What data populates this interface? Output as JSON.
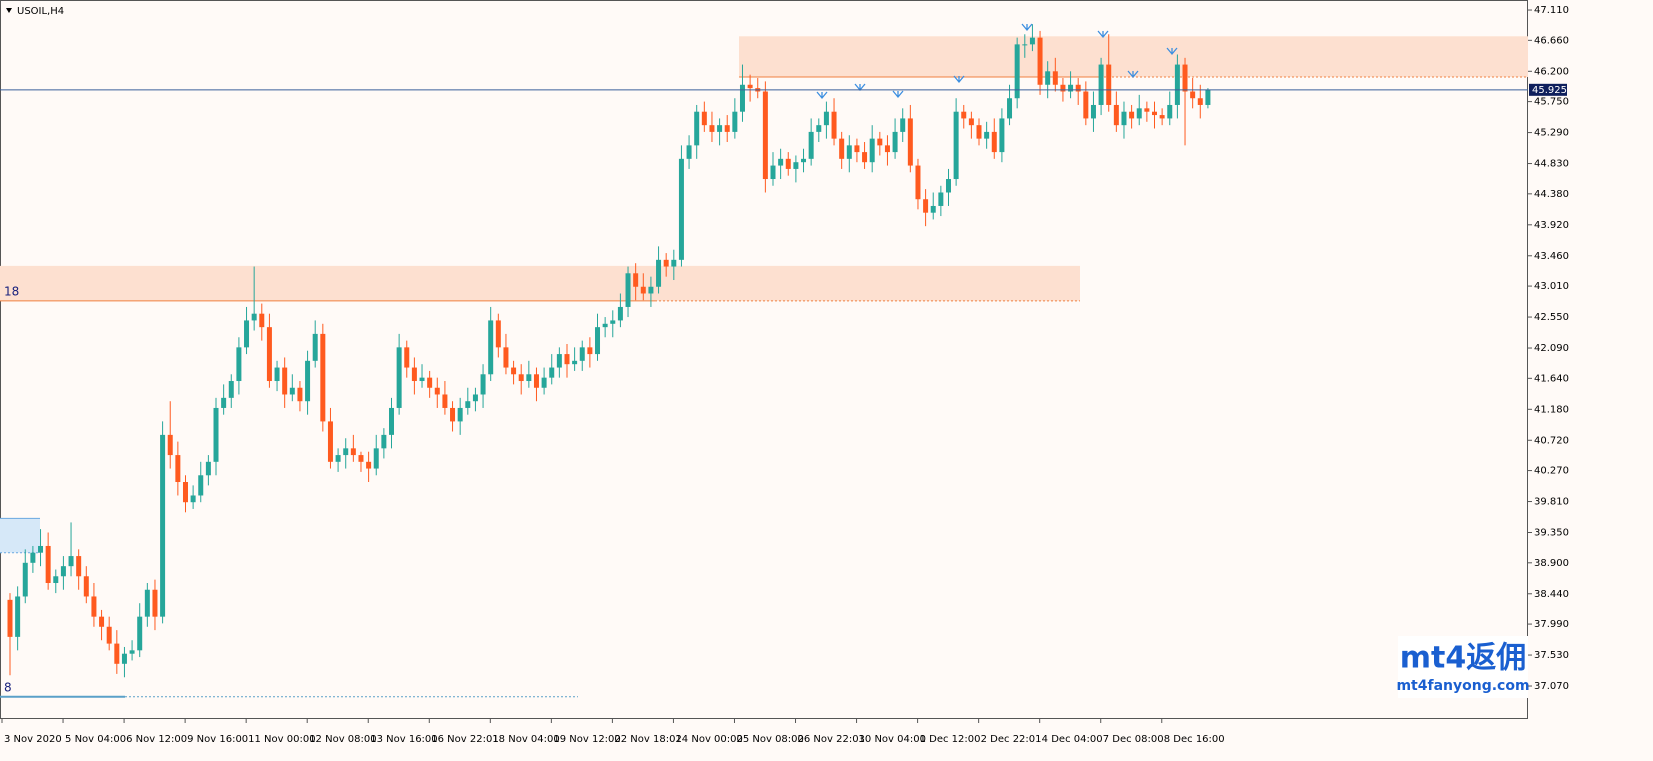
{
  "chart_data": {
    "type": "candlestick",
    "title": "USOIL,H4",
    "colors": {
      "up": "#26a69a",
      "down": "#ff5a1f"
    },
    "open": [
      38.35,
      37.8,
      38.4,
      38.9,
      39.05,
      39.15,
      38.6,
      38.7,
      38.85,
      39.0,
      38.7,
      38.4,
      38.1,
      37.95,
      37.7,
      37.4,
      37.55,
      37.6,
      38.1,
      38.5,
      38.1,
      40.8,
      40.5,
      40.1,
      39.8,
      39.9,
      40.2,
      40.4,
      41.2,
      41.35,
      41.6,
      42.1,
      42.5,
      42.6,
      42.4,
      41.6,
      41.8,
      41.4,
      41.5,
      41.3,
      41.9,
      42.3,
      41.0,
      40.4,
      40.5,
      40.6,
      40.5,
      40.4,
      40.3,
      40.6,
      40.8,
      41.2,
      42.1,
      41.8,
      41.6,
      41.65,
      41.5,
      41.4,
      41.2,
      41.0,
      41.2,
      41.3,
      41.4,
      41.7,
      42.5,
      42.1,
      41.8,
      41.7,
      41.6,
      41.7,
      41.5,
      41.65,
      41.8,
      42.0,
      41.85,
      41.9,
      42.1,
      42.0,
      42.4,
      42.45,
      42.5,
      42.7,
      43.2,
      43.0,
      42.9,
      43.0,
      43.4,
      43.3,
      43.4,
      44.9,
      45.1,
      45.6,
      45.4,
      45.3,
      45.4,
      45.3,
      45.6,
      46.0,
      45.95,
      45.9,
      44.6,
      44.8,
      44.9,
      44.75,
      44.85,
      44.9,
      45.3,
      45.4,
      45.6,
      45.2,
      44.9,
      45.1,
      45.0,
      44.85,
      45.2,
      45.1,
      45.0,
      45.3,
      45.5,
      44.8,
      44.3,
      44.1,
      44.2,
      44.4,
      44.6,
      45.6,
      45.5,
      45.4,
      45.2,
      45.3,
      45.0,
      45.5,
      45.8,
      46.6,
      46.6,
      46.7,
      46.0,
      46.2,
      46.0,
      45.9,
      46.0,
      45.9,
      45.5,
      45.7,
      46.3,
      45.7,
      45.4,
      45.6,
      45.5,
      45.65,
      45.6,
      45.55,
      45.5,
      45.7,
      46.3,
      45.9,
      45.8,
      45.7
    ],
    "high": [
      38.45,
      38.55,
      39.1,
      39.15,
      39.4,
      39.35,
      38.8,
      39.0,
      39.5,
      39.1,
      38.85,
      38.6,
      38.2,
      38.1,
      37.9,
      37.65,
      37.75,
      38.3,
      38.6,
      38.65,
      41.0,
      41.3,
      40.7,
      40.2,
      40.05,
      40.4,
      40.5,
      41.35,
      41.55,
      41.7,
      42.25,
      42.7,
      43.3,
      42.75,
      42.6,
      41.9,
      41.95,
      41.7,
      41.6,
      42.05,
      42.5,
      42.45,
      41.2,
      40.6,
      40.75,
      40.8,
      40.55,
      40.55,
      40.8,
      40.9,
      41.35,
      42.3,
      42.2,
      41.95,
      41.85,
      41.75,
      41.65,
      41.6,
      41.3,
      41.35,
      41.5,
      41.5,
      41.85,
      42.7,
      42.6,
      42.3,
      41.9,
      41.85,
      41.9,
      41.8,
      41.8,
      42.0,
      42.1,
      42.15,
      42.1,
      42.2,
      42.25,
      42.6,
      42.55,
      42.65,
      42.9,
      43.3,
      43.35,
      43.2,
      43.15,
      43.6,
      43.5,
      43.55,
      45.1,
      45.25,
      45.7,
      45.75,
      45.6,
      45.5,
      45.55,
      45.8,
      46.3,
      46.15,
      46.1,
      46.05,
      45.0,
      45.05,
      45.0,
      44.95,
      45.05,
      45.5,
      45.5,
      45.75,
      45.8,
      45.3,
      45.25,
      45.2,
      45.15,
      45.4,
      45.3,
      45.25,
      45.5,
      45.65,
      45.7,
      44.9,
      44.45,
      44.4,
      44.5,
      44.75,
      45.8,
      45.7,
      45.6,
      45.5,
      45.45,
      45.5,
      45.65,
      46.0,
      46.7,
      46.75,
      46.9,
      46.8,
      46.35,
      46.4,
      46.1,
      46.2,
      46.1,
      46.05,
      45.9,
      46.4,
      46.75,
      45.9,
      45.75,
      45.7,
      45.85,
      45.75,
      45.75,
      45.65,
      45.9,
      46.45,
      46.4,
      46.1,
      46.0,
      45.95
    ],
    "low": [
      37.23,
      37.6,
      38.3,
      38.75,
      38.85,
      38.5,
      38.45,
      38.5,
      38.7,
      38.5,
      38.3,
      37.95,
      37.75,
      37.6,
      37.25,
      37.2,
      37.45,
      37.5,
      37.95,
      37.9,
      38.0,
      40.3,
      39.9,
      39.65,
      39.7,
      39.8,
      40.05,
      40.2,
      41.1,
      41.2,
      41.4,
      42.0,
      42.35,
      42.2,
      41.5,
      41.45,
      41.2,
      41.3,
      41.15,
      41.1,
      41.8,
      40.85,
      40.3,
      40.25,
      40.3,
      40.4,
      40.25,
      40.1,
      40.2,
      40.45,
      40.6,
      41.1,
      41.65,
      41.4,
      41.5,
      41.35,
      41.2,
      41.1,
      40.85,
      40.8,
      41.1,
      41.15,
      41.2,
      41.6,
      41.95,
      41.7,
      41.55,
      41.4,
      41.5,
      41.3,
      41.4,
      41.55,
      41.65,
      41.65,
      41.75,
      41.75,
      41.8,
      41.9,
      42.25,
      42.25,
      42.4,
      42.55,
      42.8,
      42.8,
      42.7,
      42.9,
      43.15,
      43.1,
      43.3,
      44.75,
      44.9,
      45.3,
      45.15,
      45.1,
      45.15,
      45.2,
      45.45,
      45.75,
      45.8,
      44.4,
      44.5,
      44.6,
      44.65,
      44.55,
      44.7,
      44.8,
      45.15,
      45.2,
      45.1,
      44.75,
      44.7,
      44.85,
      44.75,
      44.7,
      44.95,
      44.8,
      44.9,
      45.15,
      44.7,
      44.15,
      43.9,
      44.0,
      44.05,
      44.2,
      44.5,
      45.35,
      45.2,
      45.1,
      45.05,
      44.9,
      44.85,
      45.4,
      45.65,
      46.4,
      46.5,
      45.85,
      45.8,
      45.9,
      45.75,
      45.8,
      45.7,
      45.4,
      45.3,
      45.55,
      45.6,
      45.3,
      45.2,
      45.35,
      45.4,
      45.45,
      45.35,
      45.4,
      45.4,
      45.5,
      45.1,
      45.65,
      45.5,
      45.65
    ],
    "close": [
      37.8,
      38.4,
      38.9,
      39.05,
      39.15,
      38.6,
      38.7,
      38.85,
      39.0,
      38.7,
      38.4,
      38.1,
      37.95,
      37.7,
      37.4,
      37.55,
      37.6,
      38.1,
      38.5,
      38.1,
      40.8,
      40.5,
      40.1,
      39.8,
      39.9,
      40.2,
      40.4,
      41.2,
      41.35,
      41.6,
      42.1,
      42.5,
      42.6,
      42.4,
      41.6,
      41.8,
      41.4,
      41.5,
      41.3,
      41.9,
      42.3,
      41.0,
      40.4,
      40.5,
      40.6,
      40.5,
      40.4,
      40.3,
      40.6,
      40.8,
      41.2,
      42.1,
      41.8,
      41.6,
      41.65,
      41.5,
      41.4,
      41.2,
      41.0,
      41.2,
      41.3,
      41.4,
      41.7,
      42.5,
      42.1,
      41.8,
      41.7,
      41.6,
      41.7,
      41.5,
      41.65,
      41.8,
      42.0,
      41.85,
      41.9,
      42.1,
      42.0,
      42.4,
      42.45,
      42.5,
      42.7,
      43.2,
      43.0,
      42.9,
      43.0,
      43.4,
      43.3,
      43.4,
      44.9,
      45.1,
      45.6,
      45.4,
      45.3,
      45.4,
      45.3,
      45.6,
      46.0,
      45.95,
      45.9,
      44.6,
      44.8,
      44.9,
      44.75,
      44.85,
      44.9,
      45.3,
      45.4,
      45.6,
      45.2,
      44.9,
      45.1,
      45.0,
      44.85,
      45.2,
      45.1,
      45.0,
      45.3,
      45.5,
      44.8,
      44.3,
      44.1,
      44.2,
      44.4,
      44.6,
      45.6,
      45.5,
      45.4,
      45.2,
      45.3,
      45.0,
      45.5,
      45.8,
      46.6,
      46.6,
      46.7,
      46.0,
      46.2,
      46.0,
      45.9,
      46.0,
      45.9,
      45.5,
      45.7,
      46.3,
      45.7,
      45.4,
      45.6,
      45.5,
      45.65,
      45.6,
      45.55,
      45.5,
      45.7,
      46.3,
      45.9,
      45.8,
      45.7,
      45.925
    ],
    "last_price": 45.925,
    "ylim": [
      36.595,
      47.259
    ],
    "yticks": [
      {
        "value": 47.11,
        "label": "47.110"
      },
      {
        "value": 46.66,
        "label": "46.660"
      },
      {
        "value": 46.2,
        "label": "46.200"
      },
      {
        "value": 45.75,
        "label": "45.750"
      },
      {
        "value": 45.29,
        "label": "45.290"
      },
      {
        "value": 44.83,
        "label": "44.830"
      },
      {
        "value": 44.38,
        "label": "44.380"
      },
      {
        "value": 43.92,
        "label": "43.920"
      },
      {
        "value": 43.46,
        "label": "43.460"
      },
      {
        "value": 43.01,
        "label": "43.010"
      },
      {
        "value": 42.55,
        "label": "42.550"
      },
      {
        "value": 42.09,
        "label": "42.090"
      },
      {
        "value": 41.64,
        "label": "41.640"
      },
      {
        "value": 41.18,
        "label": "41.180"
      },
      {
        "value": 40.72,
        "label": "40.720"
      },
      {
        "value": 40.27,
        "label": "40.270"
      },
      {
        "value": 39.81,
        "label": "39.810"
      },
      {
        "value": 39.35,
        "label": "39.350"
      },
      {
        "value": 38.9,
        "label": "38.900"
      },
      {
        "value": 38.44,
        "label": "38.440"
      },
      {
        "value": 37.99,
        "label": "37.990"
      },
      {
        "value": 37.53,
        "label": "37.530"
      },
      {
        "value": 37.07,
        "label": "37.070"
      }
    ],
    "xticks": [
      {
        "value": 0,
        "label": "3 Nov 2020"
      },
      {
        "value": 8,
        "label": "5 Nov 04:00"
      },
      {
        "value": 16,
        "label": "6 Nov 12:00"
      },
      {
        "value": 24,
        "label": "9 Nov 16:00"
      },
      {
        "value": 32,
        "label": "11 Nov 00:00"
      },
      {
        "value": 40,
        "label": "12 Nov 08:00"
      },
      {
        "value": 48,
        "label": "13 Nov 16:00"
      },
      {
        "value": 56,
        "label": "16 Nov 22:01"
      },
      {
        "value": 64,
        "label": "18 Nov 04:00"
      },
      {
        "value": 72,
        "label": "19 Nov 12:00"
      },
      {
        "value": 80,
        "label": "22 Nov 18:01"
      },
      {
        "value": 88,
        "label": "24 Nov 00:00"
      },
      {
        "value": 96,
        "label": "25 Nov 08:00"
      },
      {
        "value": 104,
        "label": "26 Nov 22:01"
      },
      {
        "value": 112,
        "label": "30 Nov 04:00"
      },
      {
        "value": 120,
        "label": "1 Dec 12:00"
      },
      {
        "value": 128,
        "label": "2 Dec 22:01"
      },
      {
        "value": 136,
        "label": "4 Dec 04:00"
      },
      {
        "value": 144,
        "label": "7 Dec 08:00"
      },
      {
        "value": 152,
        "label": "8 Dec 16:00"
      }
    ],
    "zones": [
      {
        "high": 46.72,
        "low": 46.115,
        "color": "#fde0d0"
      },
      {
        "high": 43.31,
        "low": 42.79,
        "color": "#fde0d0",
        "label": "18"
      },
      {
        "high": 39.56,
        "low": 39.05,
        "color": "#d6e8f8"
      }
    ],
    "levels": [
      {
        "price": 36.91,
        "label": "8"
      }
    ],
    "watermark": {
      "title": "mt4返佣",
      "url": "mt4fanyong.com"
    }
  }
}
